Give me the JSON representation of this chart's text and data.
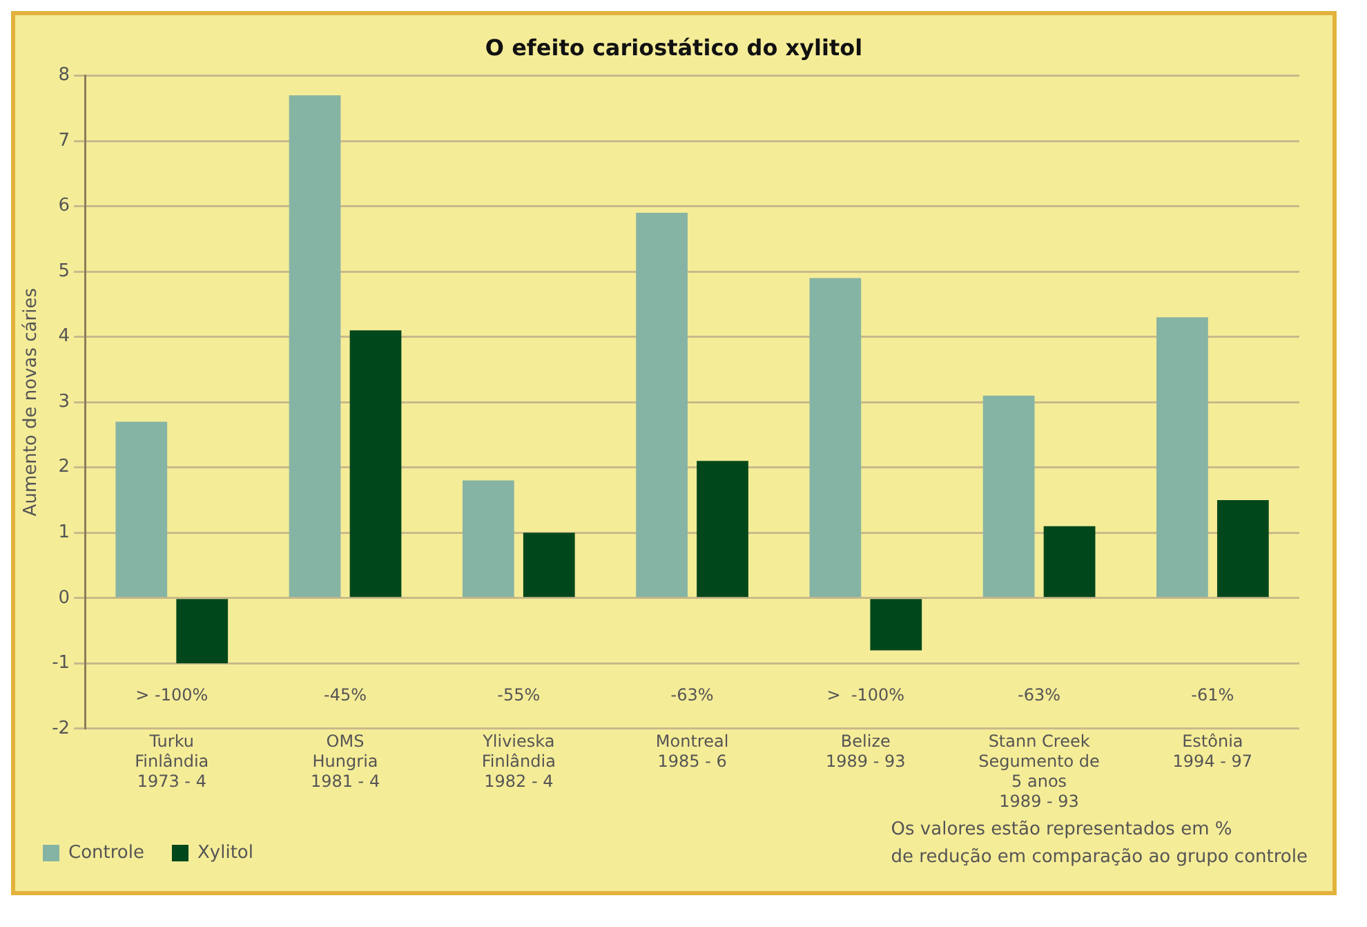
{
  "chart_data": {
    "type": "bar",
    "title": "O efeito cariostático do xylitol",
    "ylabel": "Aumento de novas cáries",
    "categories": [
      "Turku\nFinlândia\n1973 - 4",
      "OMS\nHungria\n1981 - 4",
      "Ylivieska\nFinlândia\n1982 - 4",
      "Montreal\n1985 - 6",
      "Belize\n1989 - 93",
      "Stann Creek\nSegumento de\n5 anos\n1989 - 93",
      "Estônia\n1994 - 97"
    ],
    "series": [
      {
        "name": "Controle",
        "color": "#86b4a4",
        "values": [
          2.7,
          7.7,
          1.8,
          5.9,
          4.9,
          3.1,
          4.3
        ]
      },
      {
        "name": "Xylitol",
        "color": "#00471b",
        "values": [
          -1,
          4.1,
          1.0,
          2.1,
          -0.8,
          1.1,
          1.5
        ]
      }
    ],
    "ylim": [
      -2,
      8
    ],
    "yticks": [
      -2,
      -1,
      0,
      1,
      2,
      3,
      4,
      5,
      6,
      7,
      8
    ],
    "grid": "y",
    "legend": "bottom left",
    "annotations": [
      "> -100%",
      "-45%",
      "-55%",
      "-63%",
      ">  -100%",
      "-63%",
      "-61%",
      "Os valores estão representados em %\nde redução em comparação ao grupo controle"
    ]
  }
}
